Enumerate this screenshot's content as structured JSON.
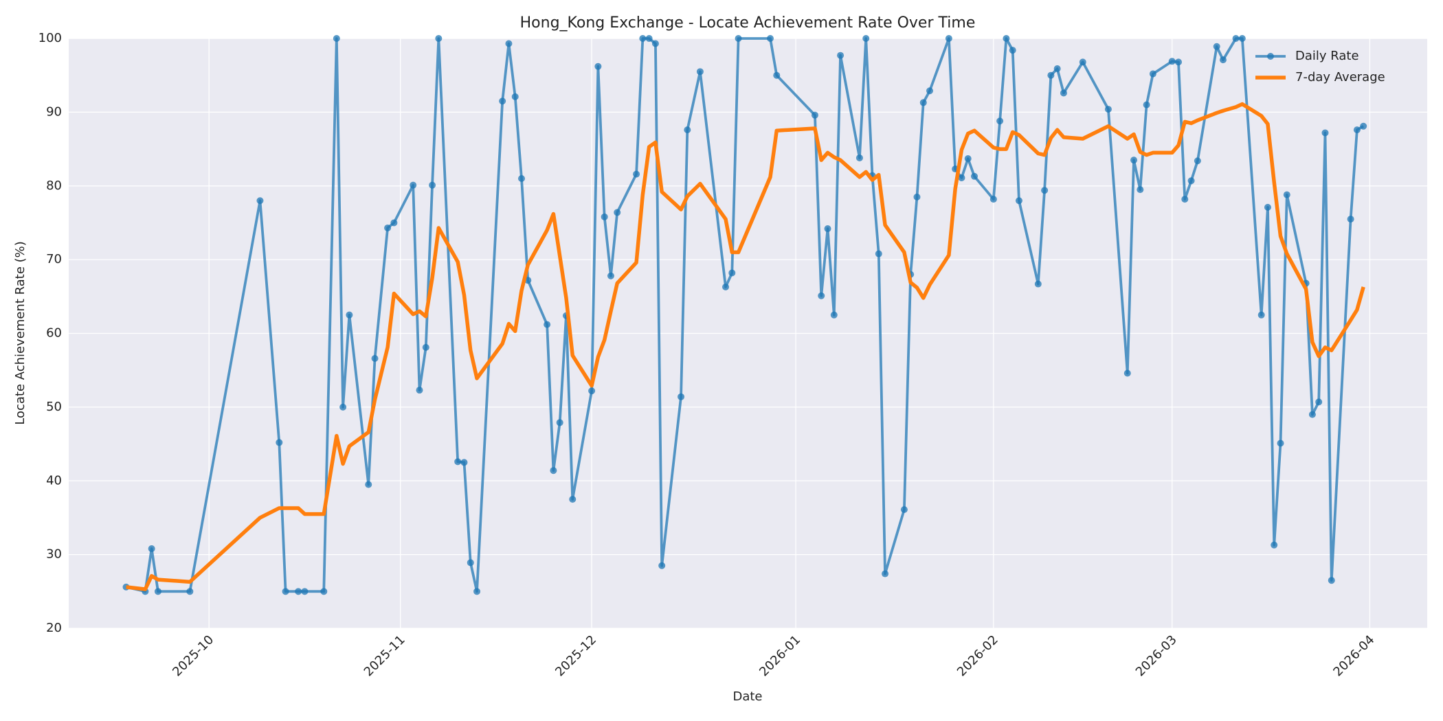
{
  "chart_data": {
    "type": "line",
    "title": "Hong_Kong Exchange - Locate Achievement Rate Over Time",
    "xlabel": "Date",
    "ylabel": "Locate Achievement Rate (%)",
    "x": [
      20349,
      20352,
      20353,
      20354,
      20359,
      20370,
      20373,
      20374,
      20376,
      20377,
      20380,
      20382,
      20383,
      20384,
      20387,
      20388,
      20390,
      20391,
      20394,
      20395,
      20396,
      20397,
      20398,
      20401,
      20402,
      20403,
      20404,
      20408,
      20409,
      20410,
      20411,
      20412,
      20415,
      20416,
      20417,
      20418,
      20419,
      20422,
      20423,
      20424,
      20425,
      20426,
      20429,
      20430,
      20431,
      20432,
      20433,
      20436,
      20437,
      20439,
      20443,
      20444,
      20445,
      20450,
      20451,
      20457,
      20458,
      20459,
      20460,
      20461,
      20464,
      20465,
      20466,
      20467,
      20468,
      20471,
      20472,
      20473,
      20474,
      20475,
      20478,
      20479,
      20480,
      20481,
      20482,
      20485,
      20486,
      20487,
      20488,
      20489,
      20492,
      20493,
      20494,
      20495,
      20496,
      20499,
      20503,
      20506,
      20507,
      20508,
      20509,
      20510,
      20513,
      20514,
      20515,
      20516,
      20517,
      20520,
      20521,
      20523,
      20524,
      20527,
      20528,
      20529,
      20530,
      20531,
      20534,
      20535,
      20536,
      20537,
      20538,
      20541,
      20542,
      20543
    ],
    "series": [
      {
        "name": "Daily Rate",
        "color": "#1f77b4",
        "markers": true,
        "values": [
          25.6,
          25,
          30.8,
          25,
          25,
          78,
          45.2,
          25,
          25,
          25,
          25,
          100,
          50,
          62.5,
          39.5,
          56.6,
          74.3,
          75,
          80.1,
          52.3,
          58.1,
          80.1,
          100,
          42.6,
          42.5,
          28.9,
          25,
          91.5,
          99.3,
          92.1,
          81,
          67.2,
          61.2,
          41.4,
          47.9,
          62.4,
          37.5,
          52.2,
          96.2,
          75.8,
          67.8,
          76.4,
          81.6,
          100,
          100,
          99.3,
          28.5,
          51.4,
          87.6,
          95.5,
          66.3,
          68.2,
          100,
          100,
          95,
          89.6,
          65.1,
          74.2,
          62.5,
          97.7,
          83.8,
          100,
          81.4,
          70.8,
          27.4,
          36.1,
          68,
          78.5,
          91.3,
          92.9,
          100,
          82.3,
          81.1,
          83.7,
          81.3,
          78.2,
          88.8,
          100,
          98.4,
          78,
          66.7,
          79.4,
          95,
          95.9,
          92.6,
          96.8,
          90.4,
          54.6,
          83.5,
          79.5,
          91,
          95.2,
          96.9,
          96.8,
          78.2,
          80.7,
          83.4,
          98.9,
          97.1,
          100,
          100,
          62.5,
          77.1,
          31.3,
          45.1,
          78.8,
          66.8,
          49,
          50.7,
          87.2,
          26.5,
          75.5,
          87.6,
          88.1
        ]
      },
      {
        "name": "7-day Average",
        "color": "#ff7f0e",
        "markers": false,
        "values": [
          25.6,
          25.3,
          27.1,
          26.6,
          26.3,
          35,
          36.3,
          36.3,
          36.3,
          35.5,
          35.5,
          46.1,
          42.3,
          44.7,
          46.6,
          51,
          58.1,
          65.4,
          62.6,
          63,
          62.3,
          67.5,
          74.3,
          69.7,
          65.2,
          57.7,
          53.9,
          58.6,
          61.3,
          60.3,
          65.8,
          69.3,
          74,
          76.2,
          70.5,
          64.8,
          57,
          52.9,
          56.8,
          59.1,
          63,
          66.8,
          69.6,
          78.8,
          85.3,
          85.9,
          79.2,
          76.8,
          78.6,
          80.3,
          75.5,
          71,
          71,
          81.2,
          87.5,
          87.8,
          83.5,
          84.5,
          83.9,
          83.5,
          81.2,
          81.9,
          80.8,
          81.5,
          74.7,
          71,
          66.9,
          66.2,
          64.8,
          66.6,
          70.6,
          79.6,
          84.9,
          87.1,
          87.5,
          85.2,
          85,
          85,
          87.3,
          86.9,
          84.4,
          84.2,
          86.5,
          87.6,
          86.6,
          86.4,
          88.1,
          86.4,
          87,
          84.6,
          84.2,
          84.5,
          84.5,
          85.5,
          88.7,
          88.5,
          88.9,
          89.9,
          90.2,
          90.7,
          91.1,
          89.5,
          88.4,
          80.5,
          73.2,
          70.8,
          66,
          58.8,
          56.9,
          58.1,
          57.7,
          61.8,
          63.2,
          66.3
        ]
      }
    ],
    "xlim": [
      20340,
      20553
    ],
    "xticks": [
      {
        "value": 20362,
        "label": "2025-10"
      },
      {
        "value": 20392,
        "label": "2025-11"
      },
      {
        "value": 20422,
        "label": "2025-12"
      },
      {
        "value": 20454,
        "label": "2026-01"
      },
      {
        "value": 20485,
        "label": "2026-02"
      },
      {
        "value": 20513,
        "label": "2026-03"
      },
      {
        "value": 20544,
        "label": "2026-04"
      }
    ],
    "ylim": [
      20,
      100
    ],
    "yticks": [
      20,
      30,
      40,
      50,
      60,
      70,
      80,
      90,
      100
    ],
    "grid": true,
    "legend": "upper right"
  }
}
